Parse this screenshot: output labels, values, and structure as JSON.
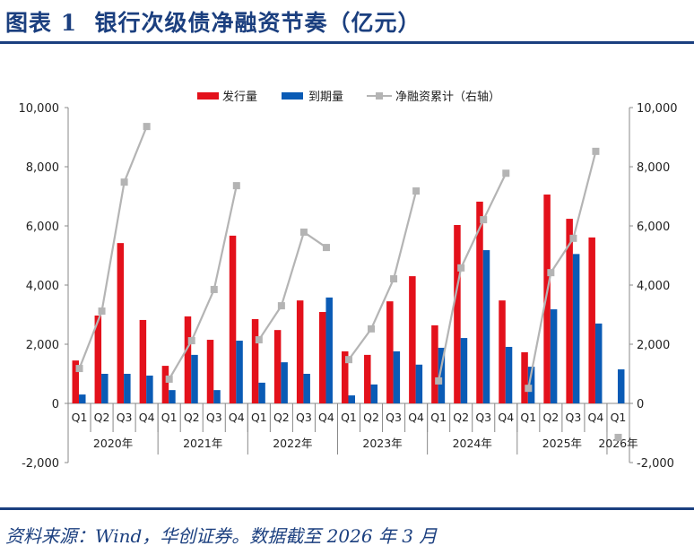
{
  "header": {
    "title": "图表 1  银行次级债净融资节奏（亿元）"
  },
  "footer": {
    "source": "资料来源：Wind，华创证券。数据截至 2026 年 3 月"
  },
  "chart_data": {
    "type": "bar",
    "categories": [
      "Q1",
      "Q2",
      "Q3",
      "Q4",
      "Q1",
      "Q2",
      "Q3",
      "Q4",
      "Q1",
      "Q2",
      "Q3",
      "Q4",
      "Q1",
      "Q2",
      "Q3",
      "Q4",
      "Q1",
      "Q2",
      "Q3",
      "Q4",
      "Q1",
      "Q2",
      "Q3",
      "Q4",
      "Q1"
    ],
    "groups": [
      {
        "label": "2020年",
        "count": 4
      },
      {
        "label": "2021年",
        "count": 4
      },
      {
        "label": "2022年",
        "count": 4
      },
      {
        "label": "2023年",
        "count": 4
      },
      {
        "label": "2024年",
        "count": 4
      },
      {
        "label": "2025年",
        "count": 4
      },
      {
        "label": "2026年",
        "count": 1
      }
    ],
    "series": [
      {
        "name": "发行量",
        "type": "bar",
        "axis": "left",
        "color": "#e3111b",
        "values": [
          1450,
          2970,
          5420,
          2820,
          1270,
          2940,
          2150,
          5670,
          2850,
          2480,
          3480,
          3090,
          1760,
          1640,
          3450,
          4300,
          2640,
          6030,
          6820,
          3480,
          1730,
          7060,
          6240,
          5610,
          null
        ]
      },
      {
        "name": "到期量",
        "type": "bar",
        "axis": "left",
        "color": "#0a5bb5",
        "values": [
          300,
          1000,
          1000,
          940,
          450,
          1640,
          450,
          2120,
          700,
          1390,
          1000,
          3580,
          270,
          640,
          1760,
          1310,
          1880,
          2210,
          5180,
          1910,
          1240,
          3180,
          5050,
          2700,
          1150
        ]
      },
      {
        "name": "净融资累计（右轴）",
        "type": "line",
        "axis": "right",
        "color": "#b4b4b4",
        "values": [
          1180,
          3120,
          7480,
          9360,
          820,
          2120,
          3850,
          7360,
          2150,
          3300,
          5790,
          5270,
          1480,
          2520,
          4210,
          7180,
          760,
          4580,
          6210,
          7780,
          510,
          4420,
          5580,
          8520,
          -1150
        ]
      }
    ],
    "left_axis": {
      "range": [
        -2000,
        10000
      ],
      "ticks": [
        "-2,000",
        "0",
        "2,000",
        "4,000",
        "6,000",
        "8,000",
        "10,000"
      ],
      "tick_values": [
        -2000,
        0,
        2000,
        4000,
        6000,
        8000,
        10000
      ]
    },
    "right_axis": {
      "range": [
        -2000,
        10000
      ],
      "ticks": [
        "-2,000",
        "0",
        "2,000",
        "4,000",
        "6,000",
        "8,000",
        "10,000"
      ],
      "tick_values": [
        -2000,
        0,
        2000,
        4000,
        6000,
        8000,
        10000
      ]
    },
    "legend_position": "top",
    "grid": false
  }
}
